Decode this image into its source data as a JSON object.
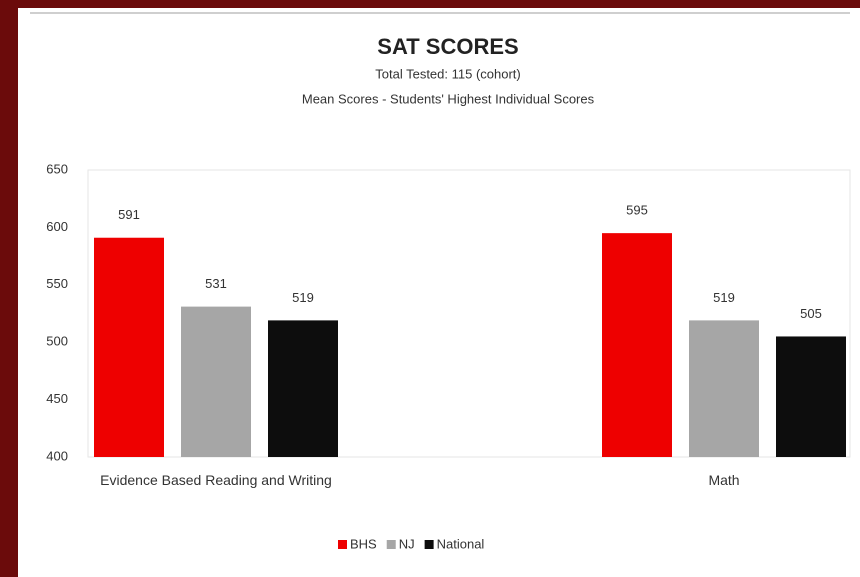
{
  "chart_data": {
    "type": "bar",
    "title": "SAT SCORES",
    "subtitle": [
      "Total Tested:  115 (cohort)",
      "Mean Scores - Students' Highest Individual Scores"
    ],
    "categories": [
      "Evidence Based Reading and Writing",
      "Math"
    ],
    "series": [
      {
        "name": "BHS",
        "color": "#ee0000",
        "values": [
          591,
          595
        ]
      },
      {
        "name": "NJ",
        "color": "#a6a6a6",
        "values": [
          531,
          519
        ]
      },
      {
        "name": "National",
        "color": "#0d0d0d",
        "values": [
          519,
          505
        ]
      }
    ],
    "ylim": [
      400,
      650
    ],
    "yticks": [
      400,
      450,
      500,
      550,
      600,
      650
    ],
    "grid": false,
    "legend": "bottom"
  }
}
